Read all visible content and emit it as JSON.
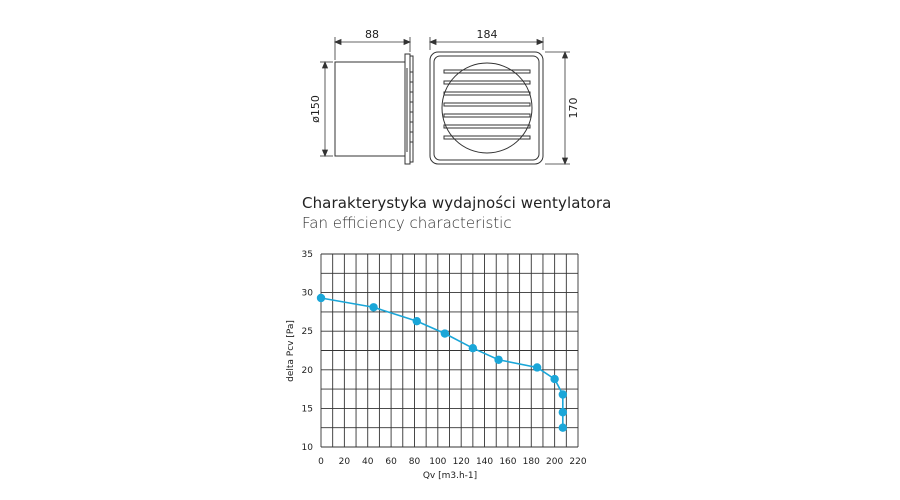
{
  "drawing": {
    "dim_depth": "88",
    "dim_width": "184",
    "dim_diameter": "ø150",
    "dim_height": "170"
  },
  "title_pl": "Charakterystyka wydajności wentylatora",
  "title_en": "Fan efficiency characteristic",
  "chart_data": {
    "type": "line",
    "xlabel": "Qv   [m3.h-1]",
    "ylabel": "delta  Pcv  [Pa]",
    "xlim": [
      0,
      220
    ],
    "ylim": [
      10,
      35
    ],
    "x_ticks": [
      0,
      20,
      40,
      60,
      80,
      100,
      120,
      140,
      160,
      180,
      200,
      220
    ],
    "y_ticks": [
      10,
      15,
      20,
      25,
      30,
      35
    ],
    "grid": true,
    "color": "#1aa6d8",
    "series": [
      {
        "x": [
          0,
          45,
          82,
          106,
          130,
          152,
          185,
          200,
          207,
          207,
          207
        ],
        "y": [
          29.3,
          28.1,
          26.3,
          24.7,
          22.8,
          21.3,
          20.3,
          18.8,
          16.8,
          14.5,
          12.5
        ]
      }
    ]
  }
}
